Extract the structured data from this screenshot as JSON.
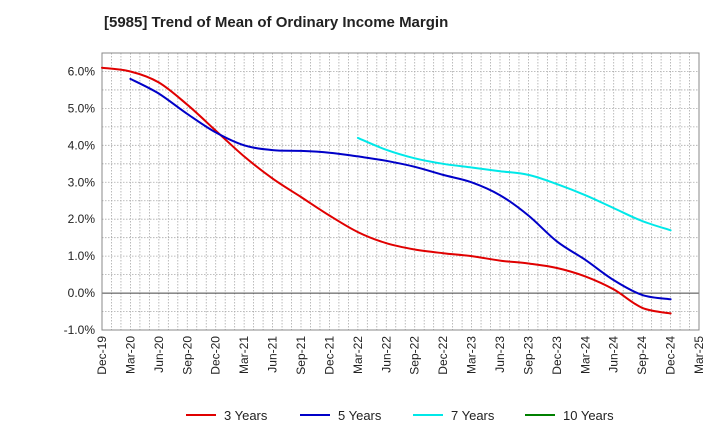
{
  "chart_data": {
    "type": "line",
    "title": "[5985]  Trend of Mean of Ordinary Income Margin",
    "xlabel": "",
    "ylabel": "",
    "x_ticks": [
      "Dec-19",
      "Mar-20",
      "Jun-20",
      "Sep-20",
      "Dec-20",
      "Mar-21",
      "Jun-21",
      "Sep-21",
      "Dec-21",
      "Mar-22",
      "Jun-22",
      "Sep-22",
      "Dec-22",
      "Mar-23",
      "Jun-23",
      "Sep-23",
      "Dec-23",
      "Mar-24",
      "Jun-24",
      "Sep-24",
      "Dec-24",
      "Mar-25"
    ],
    "y_ticks": [
      "6.0%",
      "5.0%",
      "4.0%",
      "3.0%",
      "2.0%",
      "1.0%",
      "0.0%",
      "-1.0%"
    ],
    "y_tick_values": [
      6,
      5,
      4,
      3,
      2,
      1,
      0,
      -1
    ],
    "ylim": [
      -1.0,
      6.5
    ],
    "grid": true,
    "legend_position": "bottom",
    "series": [
      {
        "name": "3 Years",
        "color": "#e00000",
        "x": [
          "Dec-19",
          "Mar-20",
          "Jun-20",
          "Sep-20",
          "Dec-20",
          "Mar-21",
          "Jun-21",
          "Sep-21",
          "Dec-21",
          "Mar-22",
          "Jun-22",
          "Sep-22",
          "Dec-22",
          "Mar-23",
          "Jun-23",
          "Sep-23",
          "Dec-23",
          "Mar-24",
          "Jun-24",
          "Sep-24",
          "Dec-24"
        ],
        "values": [
          6.1,
          6.0,
          5.7,
          5.1,
          4.4,
          3.7,
          3.1,
          2.6,
          2.1,
          1.65,
          1.35,
          1.18,
          1.08,
          1.0,
          0.88,
          0.8,
          0.68,
          0.45,
          0.1,
          -0.4,
          -0.55
        ]
      },
      {
        "name": "5 Years",
        "color": "#0000c8",
        "x": [
          "Mar-20",
          "Jun-20",
          "Sep-20",
          "Dec-20",
          "Mar-21",
          "Jun-21",
          "Sep-21",
          "Dec-21",
          "Mar-22",
          "Jun-22",
          "Sep-22",
          "Dec-22",
          "Mar-23",
          "Jun-23",
          "Sep-23",
          "Dec-23",
          "Mar-24",
          "Jun-24",
          "Sep-24",
          "Dec-24"
        ],
        "values": [
          5.8,
          5.4,
          4.85,
          4.35,
          4.0,
          3.87,
          3.85,
          3.8,
          3.7,
          3.58,
          3.42,
          3.2,
          3.0,
          2.65,
          2.1,
          1.4,
          0.9,
          0.35,
          -0.05,
          -0.17
        ]
      },
      {
        "name": "7 Years",
        "color": "#00e8e8",
        "x": [
          "Mar-22",
          "Jun-22",
          "Sep-22",
          "Dec-22",
          "Mar-23",
          "Jun-23",
          "Sep-23",
          "Dec-23",
          "Mar-24",
          "Jun-24",
          "Sep-24",
          "Dec-24"
        ],
        "values": [
          4.2,
          3.88,
          3.65,
          3.5,
          3.4,
          3.3,
          3.2,
          2.95,
          2.65,
          2.3,
          1.95,
          1.7
        ]
      },
      {
        "name": "10 Years",
        "color": "#008000",
        "x": [],
        "values": []
      }
    ]
  }
}
